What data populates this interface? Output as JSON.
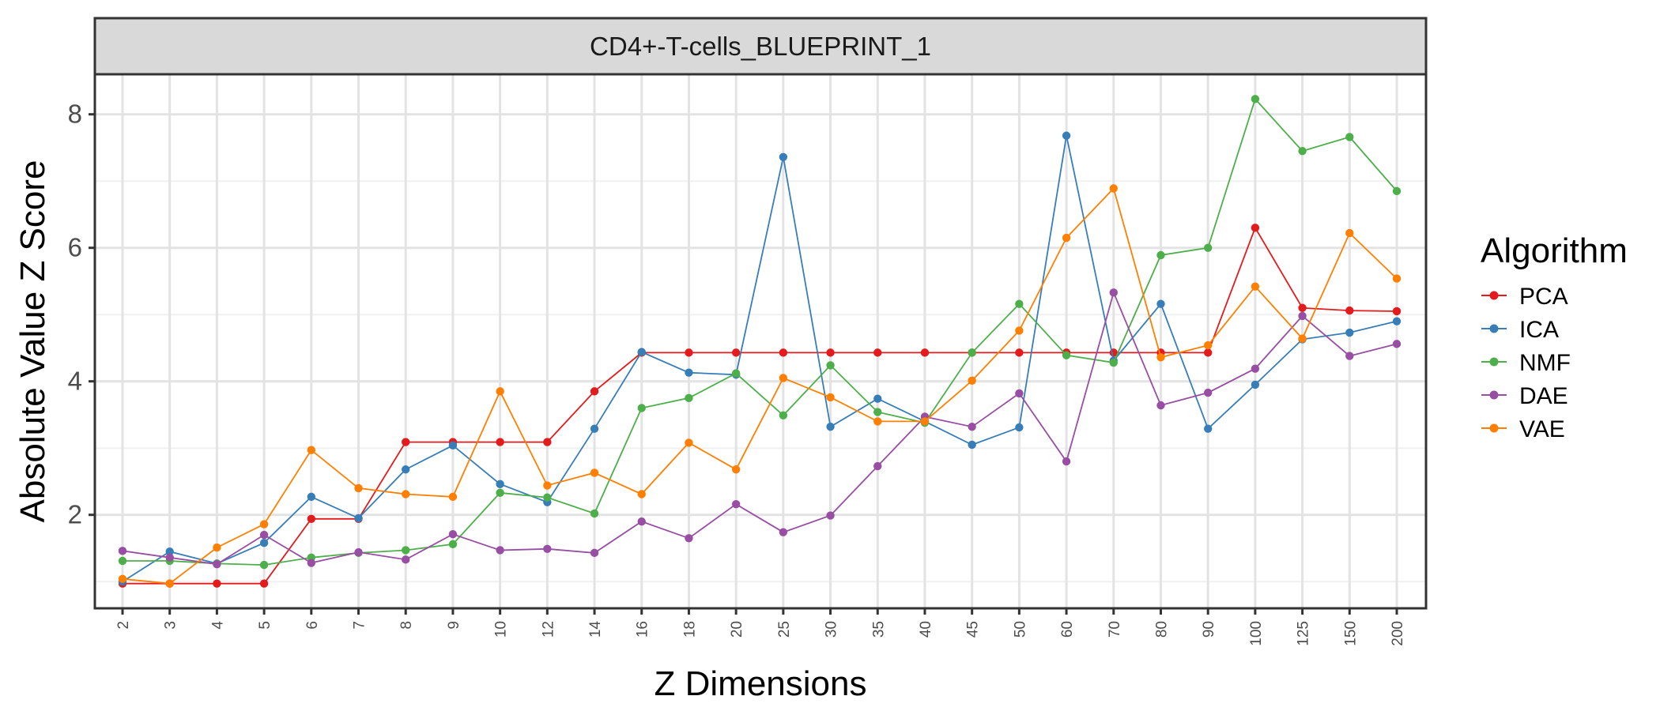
{
  "chart_data": {
    "type": "line",
    "title": "CD4+-T-cells_BLUEPRINT_1",
    "xlabel": "Z Dimensions",
    "ylabel": "Absolute Value Z Score",
    "categories": [
      "2",
      "3",
      "4",
      "5",
      "6",
      "7",
      "8",
      "9",
      "10",
      "12",
      "14",
      "16",
      "18",
      "20",
      "25",
      "30",
      "35",
      "40",
      "45",
      "50",
      "60",
      "70",
      "80",
      "90",
      "100",
      "125",
      "150",
      "200"
    ],
    "ylim": [
      0.6,
      8.6
    ],
    "yticks": [
      "2",
      "4",
      "6",
      "8"
    ],
    "grid": true,
    "legend": {
      "title": "Algorithm",
      "position": "right"
    },
    "series": [
      {
        "name": "PCA",
        "color": "#e41a1c",
        "values": [
          0.97,
          0.97,
          0.97,
          0.97,
          1.94,
          1.94,
          3.09,
          3.09,
          3.09,
          3.09,
          3.85,
          4.43,
          4.43,
          4.43,
          4.43,
          4.43,
          4.43,
          4.43,
          4.43,
          4.43,
          4.43,
          4.43,
          4.43,
          4.43,
          6.3,
          5.1,
          5.06,
          5.05
        ]
      },
      {
        "name": "ICA",
        "color": "#377eb8",
        "values": [
          1.0,
          1.45,
          1.27,
          1.58,
          2.27,
          1.95,
          2.68,
          3.04,
          2.46,
          2.19,
          3.29,
          4.44,
          4.13,
          4.1,
          7.36,
          3.32,
          3.74,
          3.4,
          3.05,
          3.31,
          7.68,
          4.31,
          5.16,
          3.29,
          3.95,
          4.63,
          4.73,
          4.9
        ]
      },
      {
        "name": "NMF",
        "color": "#4daf4a",
        "values": [
          1.31,
          1.31,
          1.27,
          1.25,
          1.36,
          1.43,
          1.47,
          1.56,
          2.33,
          2.26,
          2.02,
          3.6,
          3.75,
          4.12,
          3.49,
          4.24,
          3.54,
          3.38,
          4.43,
          5.16,
          4.39,
          4.28,
          5.89,
          6.0,
          8.23,
          7.45,
          7.66,
          6.85
        ]
      },
      {
        "name": "DAE",
        "color": "#984ea3",
        "values": [
          1.46,
          1.36,
          1.26,
          1.7,
          1.28,
          1.44,
          1.33,
          1.71,
          1.47,
          1.49,
          1.43,
          1.9,
          1.65,
          2.16,
          1.74,
          1.99,
          2.73,
          3.47,
          3.32,
          3.82,
          2.8,
          5.33,
          3.64,
          3.83,
          4.19,
          4.98,
          4.38,
          4.56
        ]
      },
      {
        "name": "VAE",
        "color": "#ff7f00",
        "values": [
          1.04,
          0.97,
          1.51,
          1.86,
          2.97,
          2.4,
          2.31,
          2.27,
          3.85,
          2.44,
          2.63,
          2.31,
          3.08,
          2.68,
          4.05,
          3.76,
          3.4,
          3.4,
          4.01,
          4.76,
          6.15,
          6.89,
          4.36,
          4.54,
          5.42,
          4.64,
          6.22,
          5.54
        ]
      }
    ]
  }
}
